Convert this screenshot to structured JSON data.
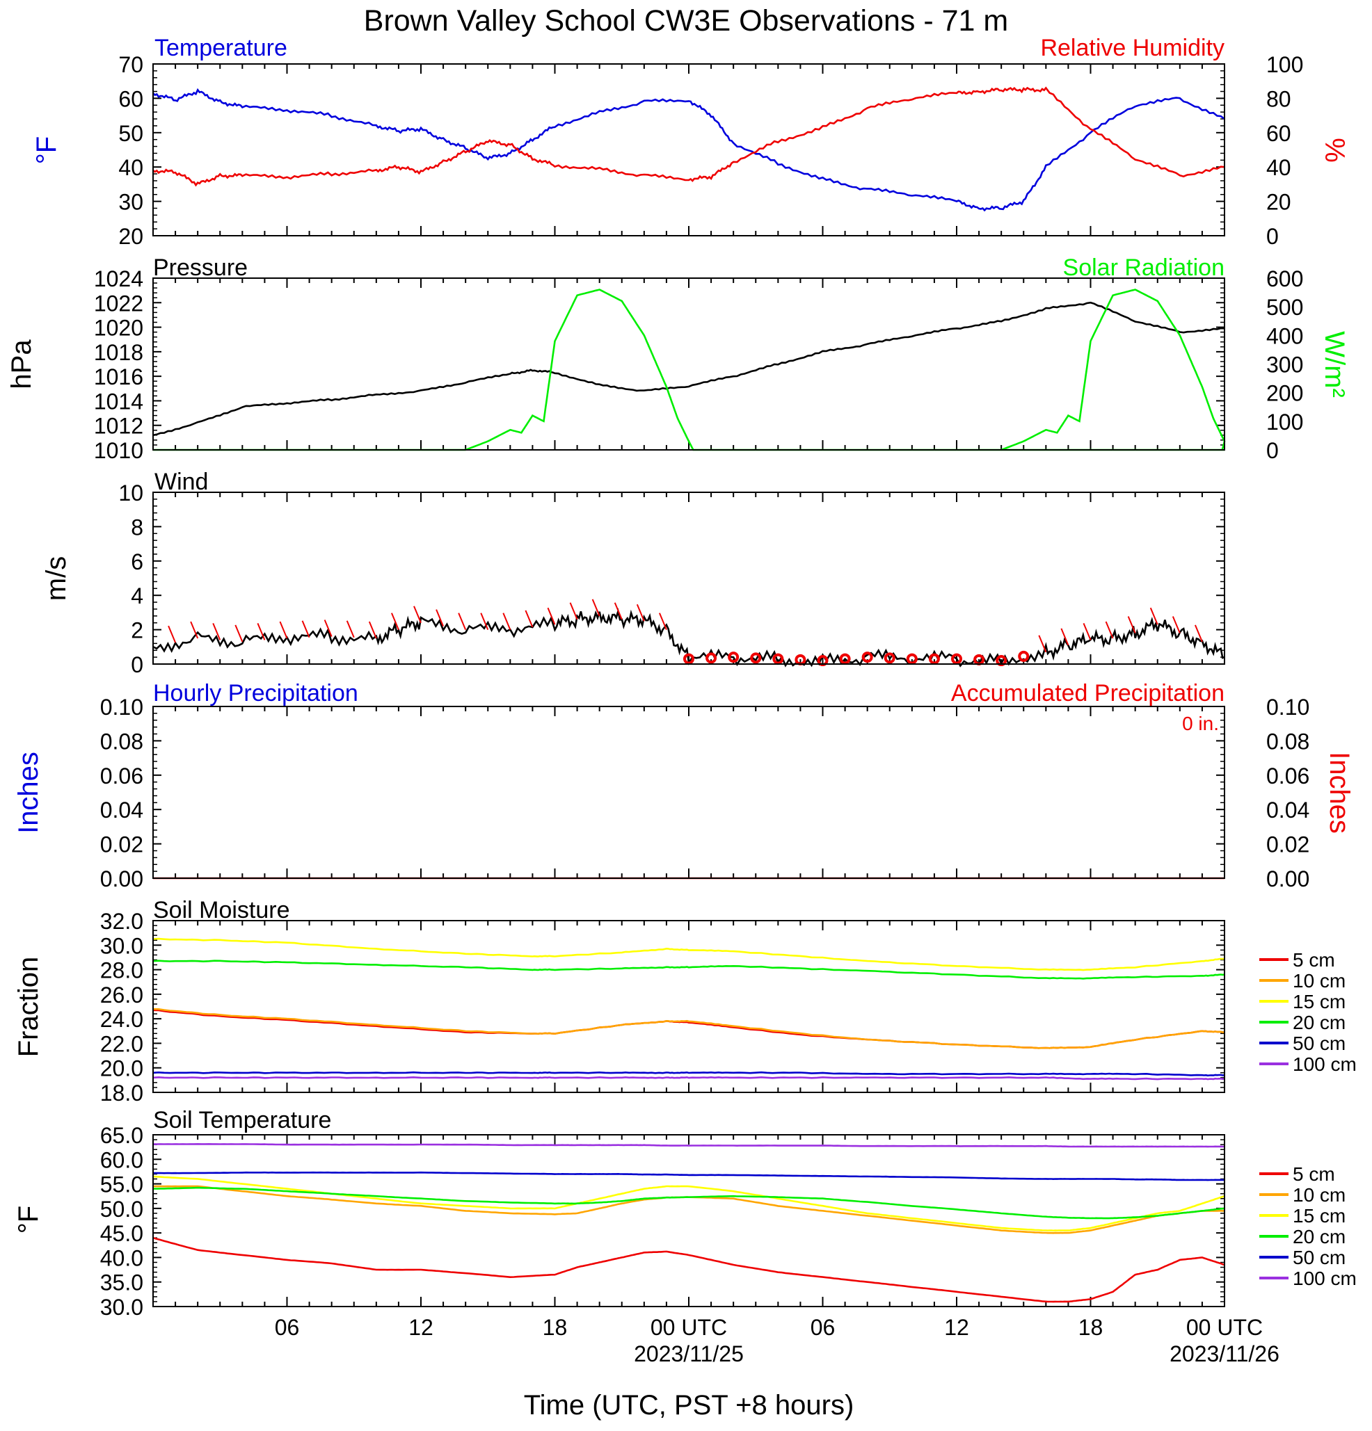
{
  "title": "Brown Valley School CW3E Observations - 71 m",
  "xlabel": "Time (UTC, PST +8 hours)",
  "x_ticks": [
    "06",
    "12",
    "18",
    "00 UTC",
    "06",
    "12",
    "18",
    "00 UTC"
  ],
  "x_dates": [
    "2023/11/25",
    "2023/11/26"
  ],
  "colors": {
    "temperature": "#0000dd",
    "rh": "#ee0000",
    "pressure": "#000000",
    "solar": "#00ee00",
    "wind": "#000000",
    "barb": "#ee0000",
    "d5": "#ee0000",
    "d10": "#ffa500",
    "d15": "#ffff00",
    "d20": "#00ee00",
    "d50": "#0000cc",
    "d100": "#9a30e0"
  },
  "chart_data": [
    {
      "type": "line",
      "left_title": "Temperature",
      "right_title": "Relative Humidity",
      "ylabel": "°F",
      "y2label": "%",
      "ylim": [
        20,
        70
      ],
      "y2lim": [
        0,
        100
      ],
      "yticks": [
        "70",
        "60",
        "50",
        "40",
        "30",
        "20"
      ],
      "y2ticks": [
        "100",
        "80",
        "60",
        "40",
        "20",
        "0"
      ],
      "hours": [
        0,
        1,
        2,
        3,
        4,
        6,
        8,
        10,
        11,
        12,
        13,
        14,
        15,
        16,
        17,
        18,
        20,
        22,
        24,
        25,
        26,
        28,
        30,
        32,
        34,
        36,
        37,
        38,
        39,
        40,
        42,
        44,
        46,
        48
      ],
      "series": [
        {
          "name": "Temperature",
          "values": [
            61.5,
            59.5,
            62,
            59,
            57.5,
            56.5,
            55,
            52,
            50.5,
            51,
            48,
            45.5,
            42.5,
            44,
            48,
            52,
            56,
            59,
            59.5,
            55,
            47,
            41,
            36.5,
            33.5,
            32,
            30,
            28,
            28,
            30,
            40,
            50,
            58,
            60,
            54
          ]
        },
        {
          "name": "Relative Humidity",
          "values": [
            38,
            37,
            30,
            35,
            35,
            34,
            36,
            38,
            40,
            37,
            43,
            49,
            55,
            53,
            45,
            41,
            39,
            35,
            33,
            34,
            43,
            55,
            63,
            74,
            80,
            83,
            84,
            85,
            85,
            85,
            62,
            45,
            35,
            40
          ]
        }
      ]
    },
    {
      "type": "line",
      "left_title": "Pressure",
      "right_title": "Solar Radiation",
      "ylabel": "hPa",
      "y2label": "W/m²",
      "ylim": [
        1010,
        1024
      ],
      "y2lim": [
        0,
        600
      ],
      "yticks": [
        "1024",
        "1022",
        "1020",
        "1018",
        "1016",
        "1014",
        "1012",
        "1010"
      ],
      "y2ticks": [
        "600",
        "500",
        "400",
        "300",
        "200",
        "100",
        "0"
      ],
      "series": [
        {
          "name": "Pressure",
          "hours": [
            0,
            2,
            4,
            6,
            8,
            10,
            12,
            14,
            16,
            17,
            18,
            20,
            22,
            24,
            26,
            28,
            30,
            32,
            34,
            36,
            38,
            40,
            42,
            44,
            46,
            48
          ],
          "values": [
            1011.2,
            1012.2,
            1013.5,
            1013.8,
            1014.1,
            1014.5,
            1014.8,
            1015.5,
            1016.2,
            1016.5,
            1016.3,
            1015.3,
            1014.8,
            1015.2,
            1016.0,
            1017.0,
            1018.0,
            1018.6,
            1019.3,
            1019.9,
            1020.5,
            1021.5,
            1022.0,
            1020.5,
            1019.6,
            1019.9
          ]
        },
        {
          "name": "Solar Radiation",
          "hours": [
            0,
            14,
            15,
            16,
            16.5,
            17,
            17.5,
            18,
            19,
            20,
            21,
            22,
            22.5,
            23,
            23.5,
            24,
            24.2,
            48
          ],
          "values": [
            0,
            0,
            30,
            70,
            60,
            120,
            100,
            380,
            540,
            560,
            520,
            400,
            310,
            220,
            110,
            30,
            0,
            0
          ]
        }
      ]
    },
    {
      "type": "line",
      "left_title": "Wind",
      "ylabel": "m/s",
      "ylim": [
        0,
        10
      ],
      "yticks": [
        "10",
        "8",
        "6",
        "4",
        "2",
        "0"
      ],
      "hours": [
        0,
        2,
        4,
        6,
        8,
        10,
        11,
        12,
        14,
        16,
        18,
        19,
        20,
        21,
        22,
        23,
        24,
        26,
        28,
        30,
        32,
        34,
        36,
        38,
        40,
        41,
        42,
        43,
        44,
        45,
        46,
        47,
        48
      ],
      "values": [
        1.0,
        1.5,
        1.3,
        1.5,
        1.6,
        1.5,
        2.0,
        2.4,
        2.0,
        2.0,
        2.3,
        2.6,
        2.8,
        2.6,
        2.5,
        2.0,
        0.3,
        0.4,
        0.3,
        0.2,
        0.4,
        0.3,
        0.3,
        0.2,
        0.7,
        1.1,
        1.4,
        1.5,
        1.8,
        2.3,
        1.8,
        1.3,
        0.4
      ]
    },
    {
      "type": "line",
      "left_title": "Hourly Precipitation",
      "right_title": "Accumulated Precipitation",
      "annotation": "0 in.",
      "ylabel": "Inches",
      "y2label": "Inches",
      "ylim": [
        0,
        0.1
      ],
      "y2lim": [
        0,
        0.1
      ],
      "yticks": [
        "0.10",
        "0.08",
        "0.06",
        "0.04",
        "0.02",
        "0.00"
      ],
      "y2ticks": [
        "0.10",
        "0.08",
        "0.06",
        "0.04",
        "0.02",
        "0.00"
      ],
      "hours": [
        0,
        48
      ],
      "values": [
        0,
        0
      ]
    },
    {
      "type": "line",
      "left_title": "Soil Moisture",
      "ylabel": "Fraction",
      "ylim": [
        18,
        32
      ],
      "yticks": [
        "32.0",
        "30.0",
        "28.0",
        "26.0",
        "24.0",
        "22.0",
        "20.0",
        "18.0"
      ],
      "hours": [
        0,
        3,
        6,
        10,
        14,
        17,
        18,
        21,
        23,
        24,
        26,
        29,
        32,
        36,
        40,
        42,
        44,
        47,
        48
      ],
      "series": [
        {
          "name": "5 cm",
          "values": [
            24.7,
            24.2,
            23.9,
            23.4,
            22.9,
            22.8,
            22.8,
            23.5,
            23.8,
            23.7,
            23.3,
            22.7,
            22.3,
            21.9,
            21.6,
            21.7,
            22.3,
            23.0,
            22.9
          ]
        },
        {
          "name": "10 cm",
          "values": [
            24.8,
            24.3,
            24.0,
            23.5,
            23.0,
            22.8,
            22.8,
            23.5,
            23.8,
            23.8,
            23.4,
            22.8,
            22.3,
            21.9,
            21.6,
            21.7,
            22.3,
            23.0,
            22.9
          ]
        },
        {
          "name": "15 cm",
          "values": [
            30.5,
            30.4,
            30.2,
            29.7,
            29.3,
            29.1,
            29.1,
            29.4,
            29.7,
            29.6,
            29.5,
            29.1,
            28.7,
            28.3,
            28.0,
            28.0,
            28.2,
            28.7,
            28.9
          ]
        },
        {
          "name": "20 cm",
          "values": [
            28.7,
            28.7,
            28.6,
            28.4,
            28.2,
            28.0,
            28.0,
            28.1,
            28.2,
            28.2,
            28.3,
            28.1,
            27.9,
            27.6,
            27.3,
            27.3,
            27.4,
            27.5,
            27.6
          ]
        },
        {
          "name": "50 cm",
          "values": [
            19.6,
            19.6,
            19.6,
            19.6,
            19.6,
            19.6,
            19.6,
            19.6,
            19.6,
            19.6,
            19.6,
            19.6,
            19.5,
            19.5,
            19.5,
            19.5,
            19.5,
            19.4,
            19.4
          ]
        },
        {
          "name": "100 cm",
          "values": [
            19.2,
            19.2,
            19.2,
            19.2,
            19.2,
            19.2,
            19.2,
            19.2,
            19.2,
            19.2,
            19.2,
            19.2,
            19.2,
            19.2,
            19.2,
            19.1,
            19.1,
            19.1,
            19.1
          ]
        }
      ]
    },
    {
      "type": "line",
      "left_title": "Soil Temperature",
      "ylabel": "°F",
      "ylim": [
        30,
        65
      ],
      "yticks": [
        "65.0",
        "60.0",
        "55.0",
        "50.0",
        "45.0",
        "40.0",
        "35.0",
        "30.0"
      ],
      "hours": [
        0,
        2,
        4,
        6,
        8,
        10,
        12,
        14,
        16,
        18,
        19,
        20,
        21,
        22,
        23,
        24,
        26,
        28,
        30,
        32,
        34,
        36,
        38,
        40,
        41,
        42,
        43,
        44,
        45,
        46,
        47,
        48
      ],
      "series": [
        {
          "name": "5 cm",
          "values": [
            44.0,
            41.5,
            40.5,
            39.5,
            38.8,
            37.5,
            37.5,
            36.8,
            36.0,
            36.5,
            38.0,
            39.0,
            40.0,
            41.0,
            41.2,
            40.5,
            38.5,
            37.0,
            36.0,
            35.0,
            34.0,
            33.0,
            32.0,
            31.0,
            31.0,
            31.5,
            33.0,
            36.5,
            37.5,
            39.5,
            40.0,
            38.5
          ]
        },
        {
          "name": "10 cm",
          "values": [
            54.5,
            54.5,
            53.5,
            52.5,
            51.8,
            51.0,
            50.5,
            49.5,
            49.0,
            48.8,
            49.0,
            50.0,
            51.0,
            51.8,
            52.2,
            52.3,
            52.0,
            50.5,
            49.5,
            48.5,
            47.5,
            46.5,
            45.5,
            45.0,
            45.0,
            45.5,
            46.5,
            47.5,
            48.5,
            49.0,
            49.5,
            49.5
          ]
        },
        {
          "name": "15 cm",
          "values": [
            56.5,
            56.0,
            55.0,
            54.0,
            53.0,
            52.0,
            51.0,
            50.5,
            50.0,
            50.0,
            51.0,
            52.0,
            53.0,
            54.0,
            54.5,
            54.5,
            53.5,
            52.0,
            50.5,
            49.0,
            48.0,
            47.0,
            46.0,
            45.5,
            45.5,
            46.0,
            47.0,
            48.0,
            49.0,
            49.5,
            51.0,
            52.5
          ]
        },
        {
          "name": "20 cm",
          "values": [
            54.0,
            54.2,
            54.0,
            53.5,
            53.0,
            52.5,
            52.0,
            51.5,
            51.2,
            51.0,
            51.0,
            51.2,
            51.5,
            52.0,
            52.2,
            52.3,
            52.5,
            52.3,
            52.0,
            51.3,
            50.5,
            49.8,
            49.0,
            48.3,
            48.1,
            48.0,
            48.0,
            48.2,
            48.5,
            49.0,
            49.5,
            50.0
          ]
        },
        {
          "name": "50 cm",
          "values": [
            57.2,
            57.2,
            57.3,
            57.3,
            57.3,
            57.3,
            57.3,
            57.2,
            57.1,
            57.0,
            57.0,
            57.0,
            57.0,
            56.9,
            56.9,
            56.8,
            56.8,
            56.7,
            56.6,
            56.5,
            56.4,
            56.3,
            56.1,
            56.0,
            56.0,
            56.0,
            56.0,
            55.9,
            55.9,
            55.8,
            55.8,
            55.8
          ]
        },
        {
          "name": "100 cm",
          "values": [
            63.1,
            63.1,
            63.1,
            63.0,
            63.0,
            63.0,
            63.0,
            63.0,
            62.9,
            62.9,
            62.9,
            62.9,
            62.9,
            62.9,
            62.8,
            62.8,
            62.8,
            62.8,
            62.8,
            62.7,
            62.7,
            62.7,
            62.7,
            62.7,
            62.6,
            62.6,
            62.6,
            62.6,
            62.6,
            62.6,
            62.6,
            62.6
          ]
        }
      ]
    }
  ],
  "legend_soil_moisture": [
    "5 cm",
    "10 cm",
    "15 cm",
    "20 cm",
    "50 cm",
    "100 cm"
  ],
  "legend_soil_temperature": [
    "5 cm",
    "10 cm",
    "15 cm",
    "20 cm",
    "50 cm",
    "100 cm"
  ]
}
